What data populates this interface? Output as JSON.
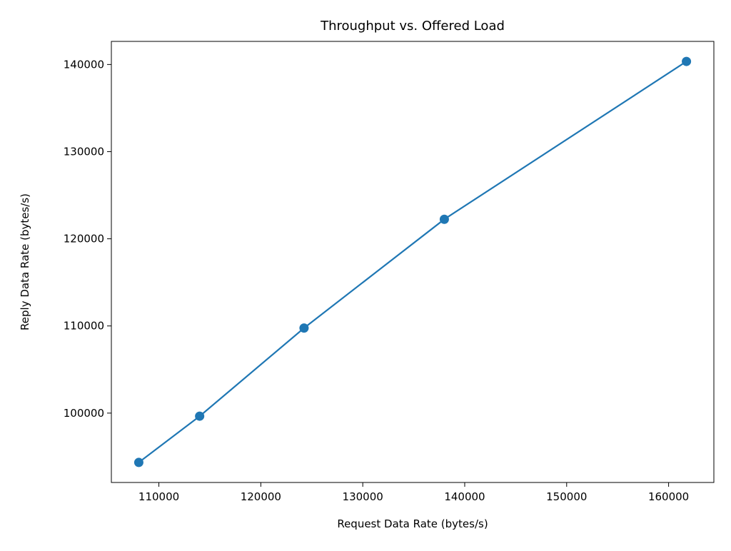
{
  "chart_data": {
    "type": "line",
    "title": "Throughput vs. Offered Load",
    "xlabel": "Request Data Rate (bytes/s)",
    "ylabel": "Reply Data Rate (bytes/s)",
    "xlim": [
      105340,
      164440
    ],
    "ylim": [
      92040,
      142650
    ],
    "xticks": [
      110000,
      120000,
      130000,
      140000,
      150000,
      160000
    ],
    "yticks": [
      100000,
      110000,
      120000,
      130000,
      140000
    ],
    "grid": false,
    "series": [
      {
        "color": "#1f77b4",
        "marker": "circle",
        "x": [
          108030,
          114000,
          124240,
          138000,
          161750
        ],
        "y": [
          94340,
          99650,
          109760,
          122240,
          140350
        ]
      }
    ]
  }
}
